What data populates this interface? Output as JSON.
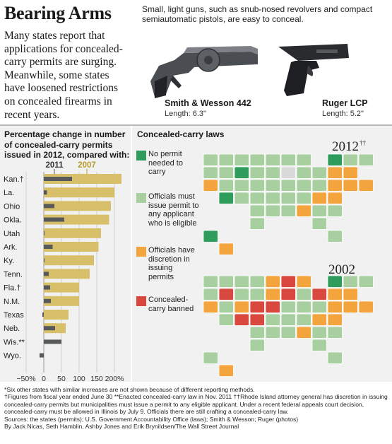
{
  "headline": "Bearing Arms",
  "dek": "Many states report that applications for concealed-carry permits are surging. Meanwhile, some states have loosened restrictions on concealed firearms in recent years.",
  "guns": {
    "caption": "Small, light guns, such as snub-nosed revolvers and compact semiautomatic pistols, are easy to conceal.",
    "items": [
      {
        "name": "Smith & Wesson 442",
        "length": "Length: 6.3\""
      },
      {
        "name": "Ruger LCP",
        "length": "Length: 5.2\""
      }
    ]
  },
  "bar_chart_title": "Percentage change in number of concealed-carry permits issued in 2012, compared with:",
  "chart_data": [
    {
      "type": "bar",
      "orientation": "horizontal",
      "title": "Percentage change in number of concealed-carry permits issued in 2012, compared with:",
      "categories": [
        "Kan.†",
        "La.",
        "Ohio",
        "Okla.",
        "Utah",
        "Ark.",
        "Ky.",
        "Tenn.",
        "Fla.†",
        "N.M.",
        "Texas",
        "Neb.",
        "Wis.**",
        "Wyo."
      ],
      "series": [
        {
          "name": "2011",
          "color": "#58595b",
          "values": [
            80,
            9,
            30,
            58,
            0,
            25,
            2,
            14,
            18,
            20,
            -4,
            32,
            50,
            -12
          ]
        },
        {
          "name": "2007",
          "color": "#d8c06a",
          "values": [
            220,
            200,
            190,
            185,
            162,
            155,
            142,
            130,
            100,
            100,
            70,
            62,
            null,
            null
          ]
        }
      ],
      "x_ticks": [
        "−50%",
        "0",
        "50",
        "100",
        "150",
        "200%"
      ],
      "xlim": [
        -50,
        225
      ],
      "grid": true,
      "legend": "top"
    },
    {
      "type": "map",
      "title": "Concealed-carry laws",
      "legend": [
        {
          "label": "No permit needed to carry",
          "color": "#2e9c5b"
        },
        {
          "label": "Officials must issue permit to any applicant who is eligible",
          "color": "#a7cfa0"
        },
        {
          "label": "Officials have discretion in issuing permits",
          "color": "#f4a43d"
        },
        {
          "label": "Concealed-carry banned",
          "color": "#d9483e"
        }
      ],
      "maps": [
        {
          "year": "2012",
          "year_mark": "††",
          "no_permit": [
            "AK",
            "AZ",
            "WY",
            "VT"
          ],
          "shall_issue": [
            "WA",
            "OR",
            "ID",
            "MT",
            "ND",
            "SD",
            "NE",
            "KS",
            "OK",
            "TX",
            "NM",
            "CO",
            "UT",
            "NV",
            "MN",
            "WI",
            "IA",
            "MO",
            "AR",
            "LA",
            "MS",
            "TN",
            "KY",
            "IN",
            "MI",
            "OH",
            "WV",
            "VA",
            "NC",
            "SC",
            "GA",
            "FL",
            "PA",
            "ME",
            "NH"
          ],
          "may_issue": [
            "CA",
            "HI",
            "AL",
            "NY",
            "NJ",
            "MD",
            "DE",
            "CT",
            "MA",
            "RI"
          ],
          "banned": [],
          "no_data": [
            "IL"
          ]
        },
        {
          "year": "2002",
          "year_mark": "",
          "no_permit": [
            "VT"
          ],
          "shall_issue": [
            "WA",
            "OR",
            "ID",
            "MT",
            "ND",
            "SD",
            "WY",
            "UT",
            "AZ",
            "TX",
            "OK",
            "AR",
            "LA",
            "MS",
            "TN",
            "KY",
            "IN",
            "WV",
            "VA",
            "NC",
            "SC",
            "GA",
            "FL",
            "PA",
            "ME",
            "NH",
            "AK"
          ],
          "may_issue": [
            "CA",
            "CO",
            "MN",
            "IA",
            "MI",
            "AL",
            "NY",
            "NJ",
            "MD",
            "DE",
            "CT",
            "MA",
            "RI",
            "HI"
          ],
          "banned": [
            "NM",
            "NV",
            "NE",
            "KS",
            "MO",
            "WI",
            "IL",
            "OH"
          ],
          "no_data": []
        }
      ]
    }
  ],
  "footnotes": [
    "*Six other states with similar increases are not shown because of different reporting methods.",
    "†Figures from fiscal year ended June 30  **Enacted concealed-carry law in Nov. 2011  ††Rhode Island attorney general has discretion in issuing concealed-carry permits but municipalities must issue a permit to any eligible applicant. Under a recent federal appeals court decision, concealed-carry must be allowed in Illinois by July 9. Officials there are still crafting a concealed-carry law.",
    "Sources: the states (permits); U.S. Government Accountability Office (laws); Smith & Wesson; Ruger (photos)",
    "By Jack Nicas, Seth Hamblin, Ashby Jones and Erik Brynildsen/The Wall Street Journal"
  ]
}
